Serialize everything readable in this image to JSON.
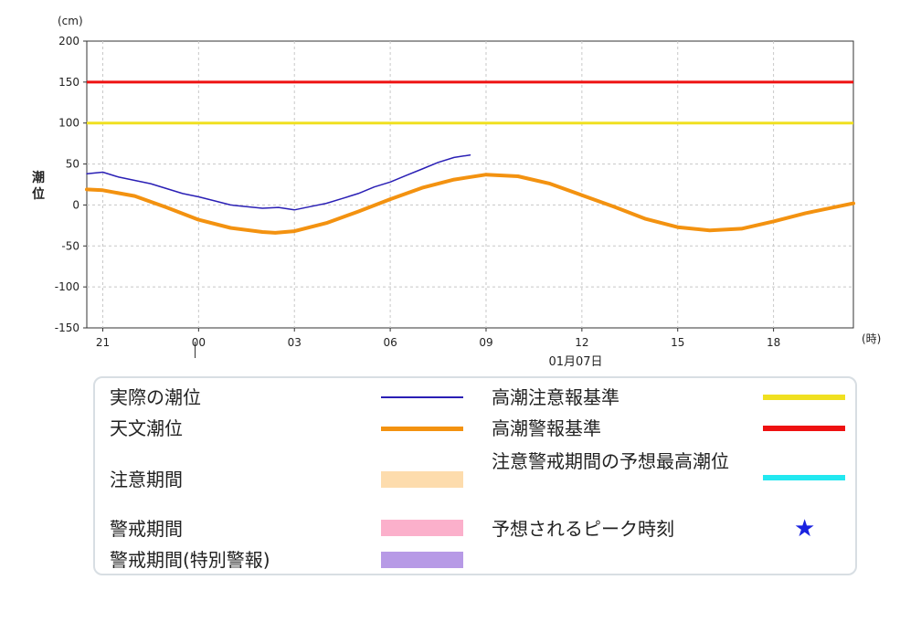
{
  "chart_data": {
    "type": "line",
    "y_unit": "(cm)",
    "ylabel": "潮\n位",
    "x_unit": "(時)",
    "ylim": [
      -150,
      200
    ],
    "yticks": [
      200,
      150,
      100,
      50,
      0,
      -50,
      -100,
      -150
    ],
    "xlim": [
      -3.5,
      20.5
    ],
    "xticks": [
      {
        "hour": -3,
        "label": "21"
      },
      {
        "hour": 0,
        "label": "00"
      },
      {
        "hour": 3,
        "label": "03"
      },
      {
        "hour": 6,
        "label": "06"
      },
      {
        "hour": 9,
        "label": "09"
      },
      {
        "hour": 12,
        "label": "12"
      },
      {
        "hour": 15,
        "label": "15"
      },
      {
        "hour": 18,
        "label": "18"
      }
    ],
    "date_label": "01月07日",
    "grid": true,
    "reference_lines": [
      {
        "name": "高潮警報基準",
        "value": 150,
        "color": "#ee1111"
      },
      {
        "name": "高潮注意報基準",
        "value": 100,
        "color": "#f0e020"
      }
    ],
    "series": [
      {
        "name": "実際の潮位",
        "color": "#2a1fb5",
        "x": [
          -3.5,
          -3.0,
          -2.5,
          -2.0,
          -1.5,
          -1.0,
          -0.5,
          0.0,
          0.5,
          1.0,
          1.5,
          2.0,
          2.5,
          3.0,
          3.5,
          4.0,
          4.5,
          5.0,
          5.5,
          6.0,
          6.5,
          7.0,
          7.5,
          8.0,
          8.5
        ],
        "y": [
          38,
          40,
          34,
          30,
          26,
          20,
          14,
          10,
          5,
          0,
          -2,
          -4,
          -3,
          -6,
          -2,
          2,
          8,
          14,
          22,
          28,
          36,
          44,
          52,
          58,
          61
        ]
      },
      {
        "name": "天文潮位",
        "color": "#f39210",
        "x": [
          -3.5,
          -3.0,
          -2.0,
          -1.0,
          0.0,
          1.0,
          2.0,
          2.4,
          3.0,
          4.0,
          5.0,
          6.0,
          7.0,
          8.0,
          9.0,
          10.0,
          11.0,
          12.0,
          13.0,
          14.0,
          15.0,
          16.0,
          17.0,
          18.0,
          19.0,
          20.0,
          20.5
        ],
        "y": [
          19,
          18,
          11,
          -3,
          -18,
          -28,
          -33,
          -34,
          -32,
          -22,
          -8,
          7,
          21,
          31,
          37,
          35,
          26,
          12,
          -2,
          -17,
          -27,
          -31,
          -29,
          -20,
          -10,
          -2,
          2
        ]
      }
    ]
  },
  "legend": {
    "actual": "実際の潮位",
    "astro": "天文潮位",
    "caution_period": "注意期間",
    "warning_period": "警戒期間",
    "special_warning_period": "警戒期間(特別警報)",
    "caution_standard": "高潮注意報基準",
    "warning_standard": "高潮警報基準",
    "max_forecast": "注意警戒期間の予想最高潮位",
    "peak_time": "予想されるピーク時刻",
    "colors": {
      "actual": "#2a1fb5",
      "astro": "#f39210",
      "caution_period": "#fddcad",
      "warning_period": "#fbb0cb",
      "special_warning_period": "#b79ae6",
      "caution_standard": "#f0e020",
      "warning_standard": "#ee1111",
      "max_forecast": "#22e8f0",
      "peak_star": "#1a22e0"
    }
  }
}
